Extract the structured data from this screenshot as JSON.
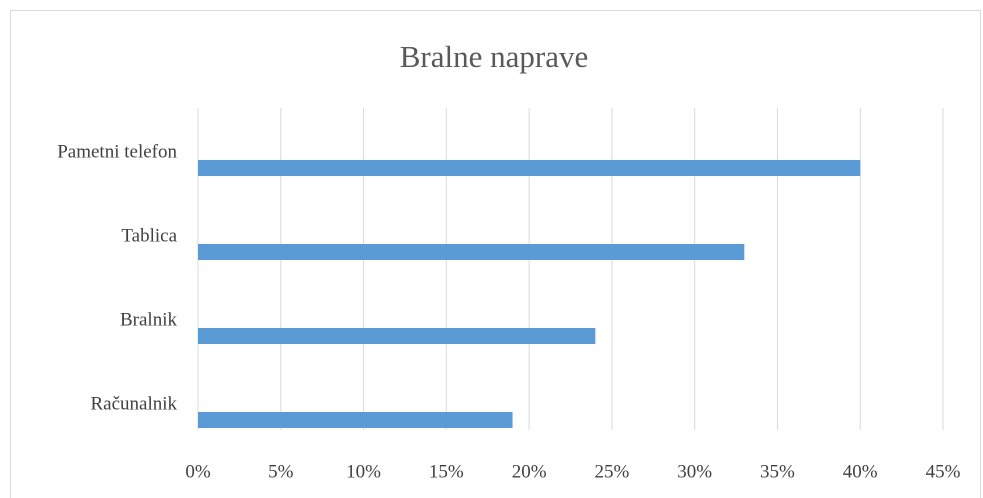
{
  "chart_data": {
    "type": "bar",
    "orientation": "horizontal",
    "title": "Bralne naprave",
    "categories": [
      "Pametni telefon",
      "Tablica",
      "Bralnik",
      "Računalnik"
    ],
    "values": [
      40,
      33,
      24,
      19
    ],
    "color": "#5b9bd5",
    "xlim": [
      0,
      45
    ],
    "xticks": [
      {
        "value": 0,
        "label": "0%"
      },
      {
        "value": 5,
        "label": "5%"
      },
      {
        "value": 10,
        "label": "10%"
      },
      {
        "value": 15,
        "label": "15%"
      },
      {
        "value": 20,
        "label": "20%"
      },
      {
        "value": 25,
        "label": "25%"
      },
      {
        "value": 30,
        "label": "30%"
      },
      {
        "value": 35,
        "label": "35%"
      },
      {
        "value": 40,
        "label": "40%"
      },
      {
        "value": 45,
        "label": "45%"
      }
    ],
    "grid": true
  }
}
